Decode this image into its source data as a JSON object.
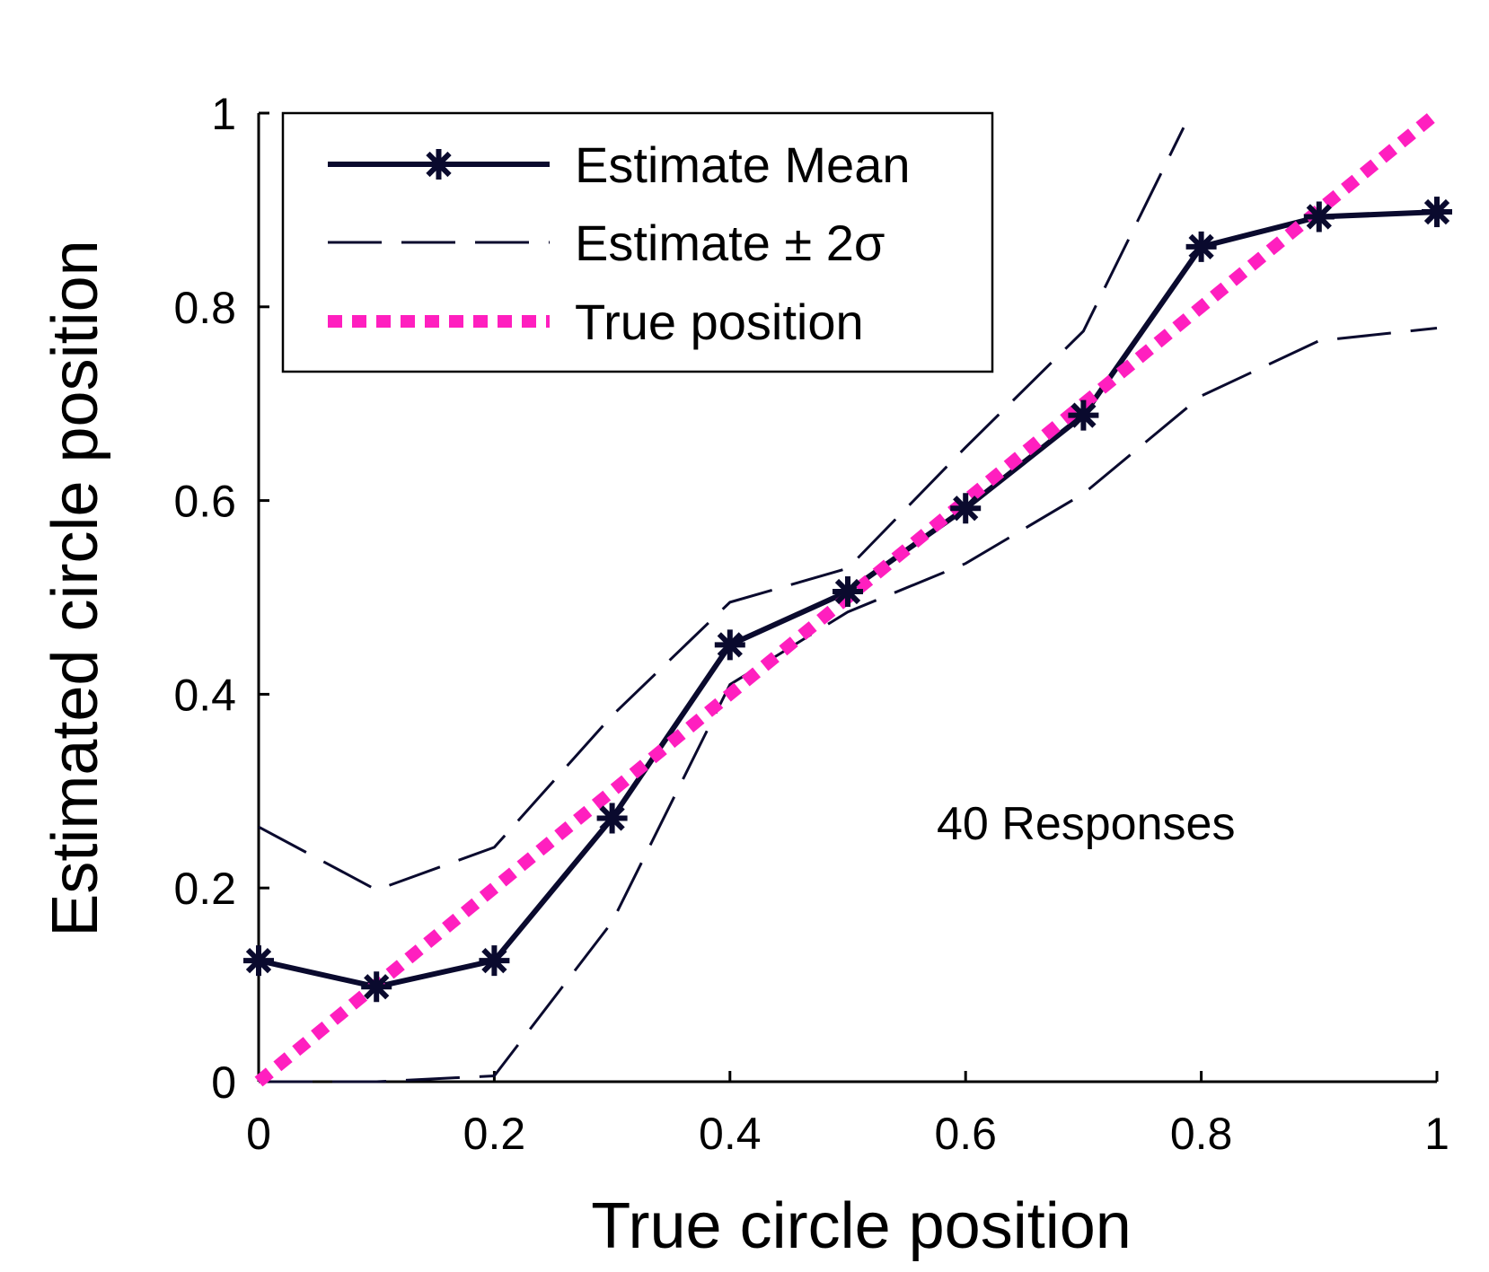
{
  "chart_data": {
    "type": "line",
    "xlabel": "True circle position",
    "ylabel": "Estimated circle position",
    "xlim": [
      0,
      1
    ],
    "ylim": [
      0,
      1
    ],
    "xticks": [
      "0",
      "0.2",
      "0.4",
      "0.6",
      "0.8",
      "1"
    ],
    "yticks": [
      "0",
      "0.2",
      "0.4",
      "0.6",
      "0.8",
      "1"
    ],
    "grid": false,
    "legend_position": "top-left",
    "annotation": "40 Responses",
    "x": [
      0,
      0.1,
      0.2,
      0.3,
      0.4,
      0.5,
      0.6,
      0.7,
      0.8,
      0.9,
      1.0
    ],
    "series": [
      {
        "name": "Estimate Mean",
        "style": "solid-asterisk",
        "color": "#0a0a2e",
        "values": [
          0.125,
          0.098,
          0.125,
          0.272,
          0.451,
          0.506,
          0.592,
          0.688,
          0.862,
          0.893,
          0.898
        ]
      },
      {
        "name": "Estimate ± 2σ",
        "style": "dashed",
        "color": "#0a0a2e",
        "upper": [
          0.263,
          0.198,
          0.242,
          0.378,
          0.495,
          0.53,
          0.655,
          0.775,
          0.985
        ],
        "upper_x": [
          0,
          0.1,
          0.2,
          0.3,
          0.4,
          0.5,
          0.6,
          0.7,
          0.785
        ],
        "lower": [
          -0.015,
          -0.015,
          0.006,
          0.165,
          0.41,
          0.485,
          0.535,
          0.607,
          0.708,
          0.765,
          0.778
        ],
        "lower_x": [
          0,
          0.1,
          0.2,
          0.3,
          0.4,
          0.5,
          0.6,
          0.7,
          0.8,
          0.9,
          1.0
        ]
      },
      {
        "name": "True position",
        "style": "dotted",
        "color": "#ff1fbf",
        "values": [
          0,
          0.1,
          0.2,
          0.3,
          0.4,
          0.5,
          0.6,
          0.7,
          0.8,
          0.9,
          1.0
        ]
      }
    ]
  }
}
